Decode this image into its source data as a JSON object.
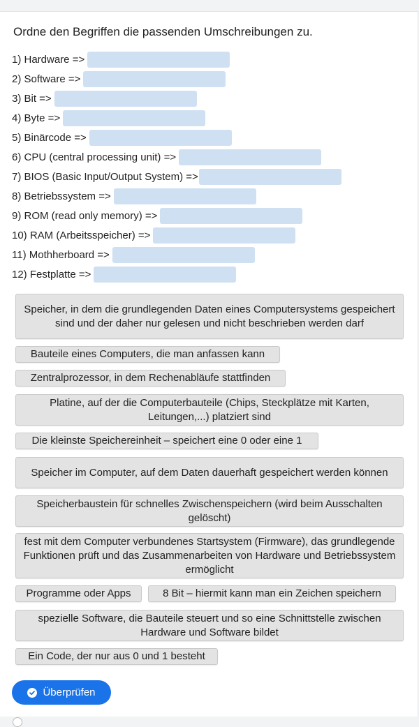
{
  "task": {
    "title": "Ordne den Begriffen die passenden Umschreibungen zu."
  },
  "items": [
    {
      "label": "1) Hardware =>"
    },
    {
      "label": "2) Software =>"
    },
    {
      "label": "3) Bit =>"
    },
    {
      "label": "4) Byte =>"
    },
    {
      "label": "5) Binärcode =>"
    },
    {
      "label": "6) CPU (central processing unit) =>"
    },
    {
      "label": "7) BIOS (Basic Input/Output System) =>"
    },
    {
      "label": "8) Betriebssystem =>"
    },
    {
      "label": "9) ROM (read only memory) =>"
    },
    {
      "label": "10) RAM (Arbeitsspeicher) =>"
    },
    {
      "label": "11) Mothherboard =>"
    },
    {
      "label": "12) Festplatte =>"
    }
  ],
  "options": [
    "Speicher, in dem die grundlegenden Daten eines Computersystems gespeichert sind und der daher nur gelesen und nicht beschrieben werden darf",
    "Bauteile eines Computers, die man anfassen kann",
    "Zentralprozessor, in dem Rechenabläufe stattfinden",
    "Platine, auf der die Computerbauteile (Chips, Steckplätze mit Karten, Leitungen,...) platziert sind",
    "Die kleinste Speichereinheit – speichert eine 0 oder eine 1",
    "Speicher im Computer, auf dem Daten dauerhaft gespeichert werden können",
    "Speicherbaustein für schnelles Zwischenspeichern (wird beim Ausschalten gelöscht)",
    "fest mit dem Computer verbundenes Startsystem (Firmware), das grundlegende Funktionen prüft und das Zusammenarbeiten von Hardware und Betriebssystem ermöglicht",
    "Programme oder Apps",
    "8 Bit – hiermit kann man ein Zeichen speichern",
    "spezielle Software, die Bauteile steuert und so eine Schnittstelle zwischen Hardware und Software bildet",
    "Ein Code, der nur aus 0 und 1 besteht"
  ],
  "check_button": {
    "label": "Überprüfen",
    "icon": "check-circle-icon"
  },
  "colors": {
    "accent": "#1a73e8",
    "drop_zone": "#cfe0f3",
    "option_bg": "#e3e3e3"
  }
}
